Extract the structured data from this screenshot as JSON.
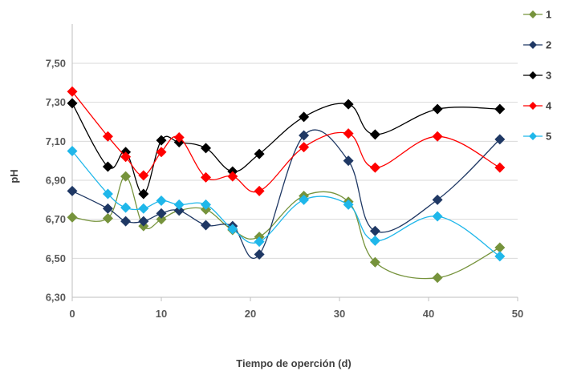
{
  "chart_data": {
    "type": "line",
    "title": "",
    "xlabel": "Tiempo de operción (d)",
    "ylabel": "pH",
    "xlim": [
      0,
      50
    ],
    "ylim": [
      6.3,
      7.6
    ],
    "x_ticks": [
      "0",
      "10",
      "20",
      "30",
      "40",
      "50"
    ],
    "y_ticks": [
      "6,30",
      "6,50",
      "6,70",
      "6,90",
      "7,10",
      "7,30",
      "7,50"
    ],
    "grid": "horizontal",
    "legend_position": "right",
    "x": [
      0,
      4,
      6,
      8,
      10,
      12,
      15,
      18,
      21,
      26,
      31,
      34,
      41,
      48
    ],
    "series": [
      {
        "name": "1",
        "color": "#76933c",
        "values": [
          6.71,
          6.705,
          6.92,
          6.665,
          6.7,
          6.745,
          6.75,
          6.645,
          6.61,
          6.82,
          6.79,
          6.48,
          6.4,
          6.555
        ]
      },
      {
        "name": "2",
        "color": "#1f3864",
        "values": [
          6.845,
          6.755,
          6.69,
          6.69,
          6.73,
          6.745,
          6.67,
          6.665,
          6.52,
          7.13,
          7.0,
          6.64,
          6.8,
          7.11
        ]
      },
      {
        "name": "3",
        "color": "#000000",
        "values": [
          7.295,
          6.97,
          7.045,
          6.83,
          7.105,
          7.095,
          7.065,
          6.945,
          7.035,
          7.225,
          7.29,
          7.135,
          7.265,
          7.265
        ]
      },
      {
        "name": "4",
        "color": "#ff0000",
        "values": [
          7.355,
          7.125,
          7.02,
          6.925,
          7.045,
          7.12,
          6.915,
          6.92,
          6.845,
          7.07,
          7.14,
          6.965,
          7.125,
          6.965
        ]
      },
      {
        "name": "5",
        "color": "#1fb7ea",
        "values": [
          7.05,
          6.83,
          6.76,
          6.755,
          6.795,
          6.775,
          6.775,
          6.65,
          6.585,
          6.8,
          6.775,
          6.59,
          6.715,
          6.51
        ]
      }
    ]
  }
}
